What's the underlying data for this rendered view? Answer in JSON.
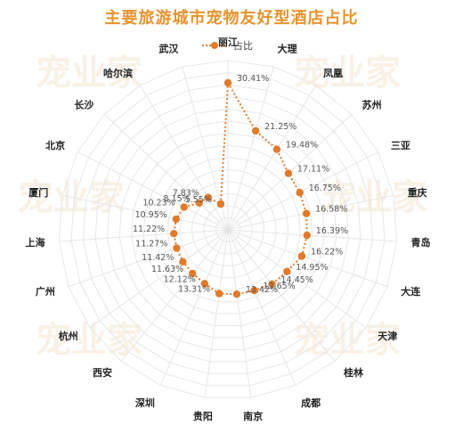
{
  "chart_data": {
    "type": "radar",
    "title": "主要旅游城市宠物友好型酒店占比",
    "legend": {
      "position": "top",
      "labels": [
        "占比"
      ]
    },
    "categories": [
      "丽江",
      "大理",
      "凤凰",
      "苏州",
      "三亚",
      "重庆",
      "青岛",
      "大连",
      "天津",
      "桂林",
      "成都",
      "南京",
      "贵阳",
      "深圳",
      "西安",
      "杭州",
      "广州",
      "上海",
      "厦门",
      "北京",
      "长沙",
      "哈尔滨",
      "武汉"
    ],
    "series": [
      {
        "name": "占比",
        "values": [
          30.41,
          21.25,
          19.48,
          17.11,
          16.75,
          16.58,
          16.39,
          16.22,
          14.95,
          14.45,
          13.65,
          13.42,
          13.31,
          12.12,
          11.63,
          11.42,
          11.27,
          11.22,
          10.95,
          10.23,
          8.15,
          7.83,
          5.55
        ],
        "data_labels": [
          "30.41%",
          "21.25%",
          "19.48%",
          "17.11%",
          "16.75%",
          "16.58%",
          "16.39%",
          "16.22%",
          "14.95%",
          "14.45%",
          "13.65%",
          "13.42%",
          "13.31%",
          "12.12%",
          "11.63%",
          "11.42%",
          "11.27%",
          "11.22%",
          "10.95%",
          "10.23%",
          "8.15%",
          "7.83%",
          "5.55%"
        ]
      }
    ],
    "rlim": [
      0,
      35
    ],
    "grid": true,
    "colors": {
      "series": "#e07b2c",
      "grid": "#e6e6e6",
      "title": "#e8932e"
    }
  },
  "watermark": "宠业家"
}
